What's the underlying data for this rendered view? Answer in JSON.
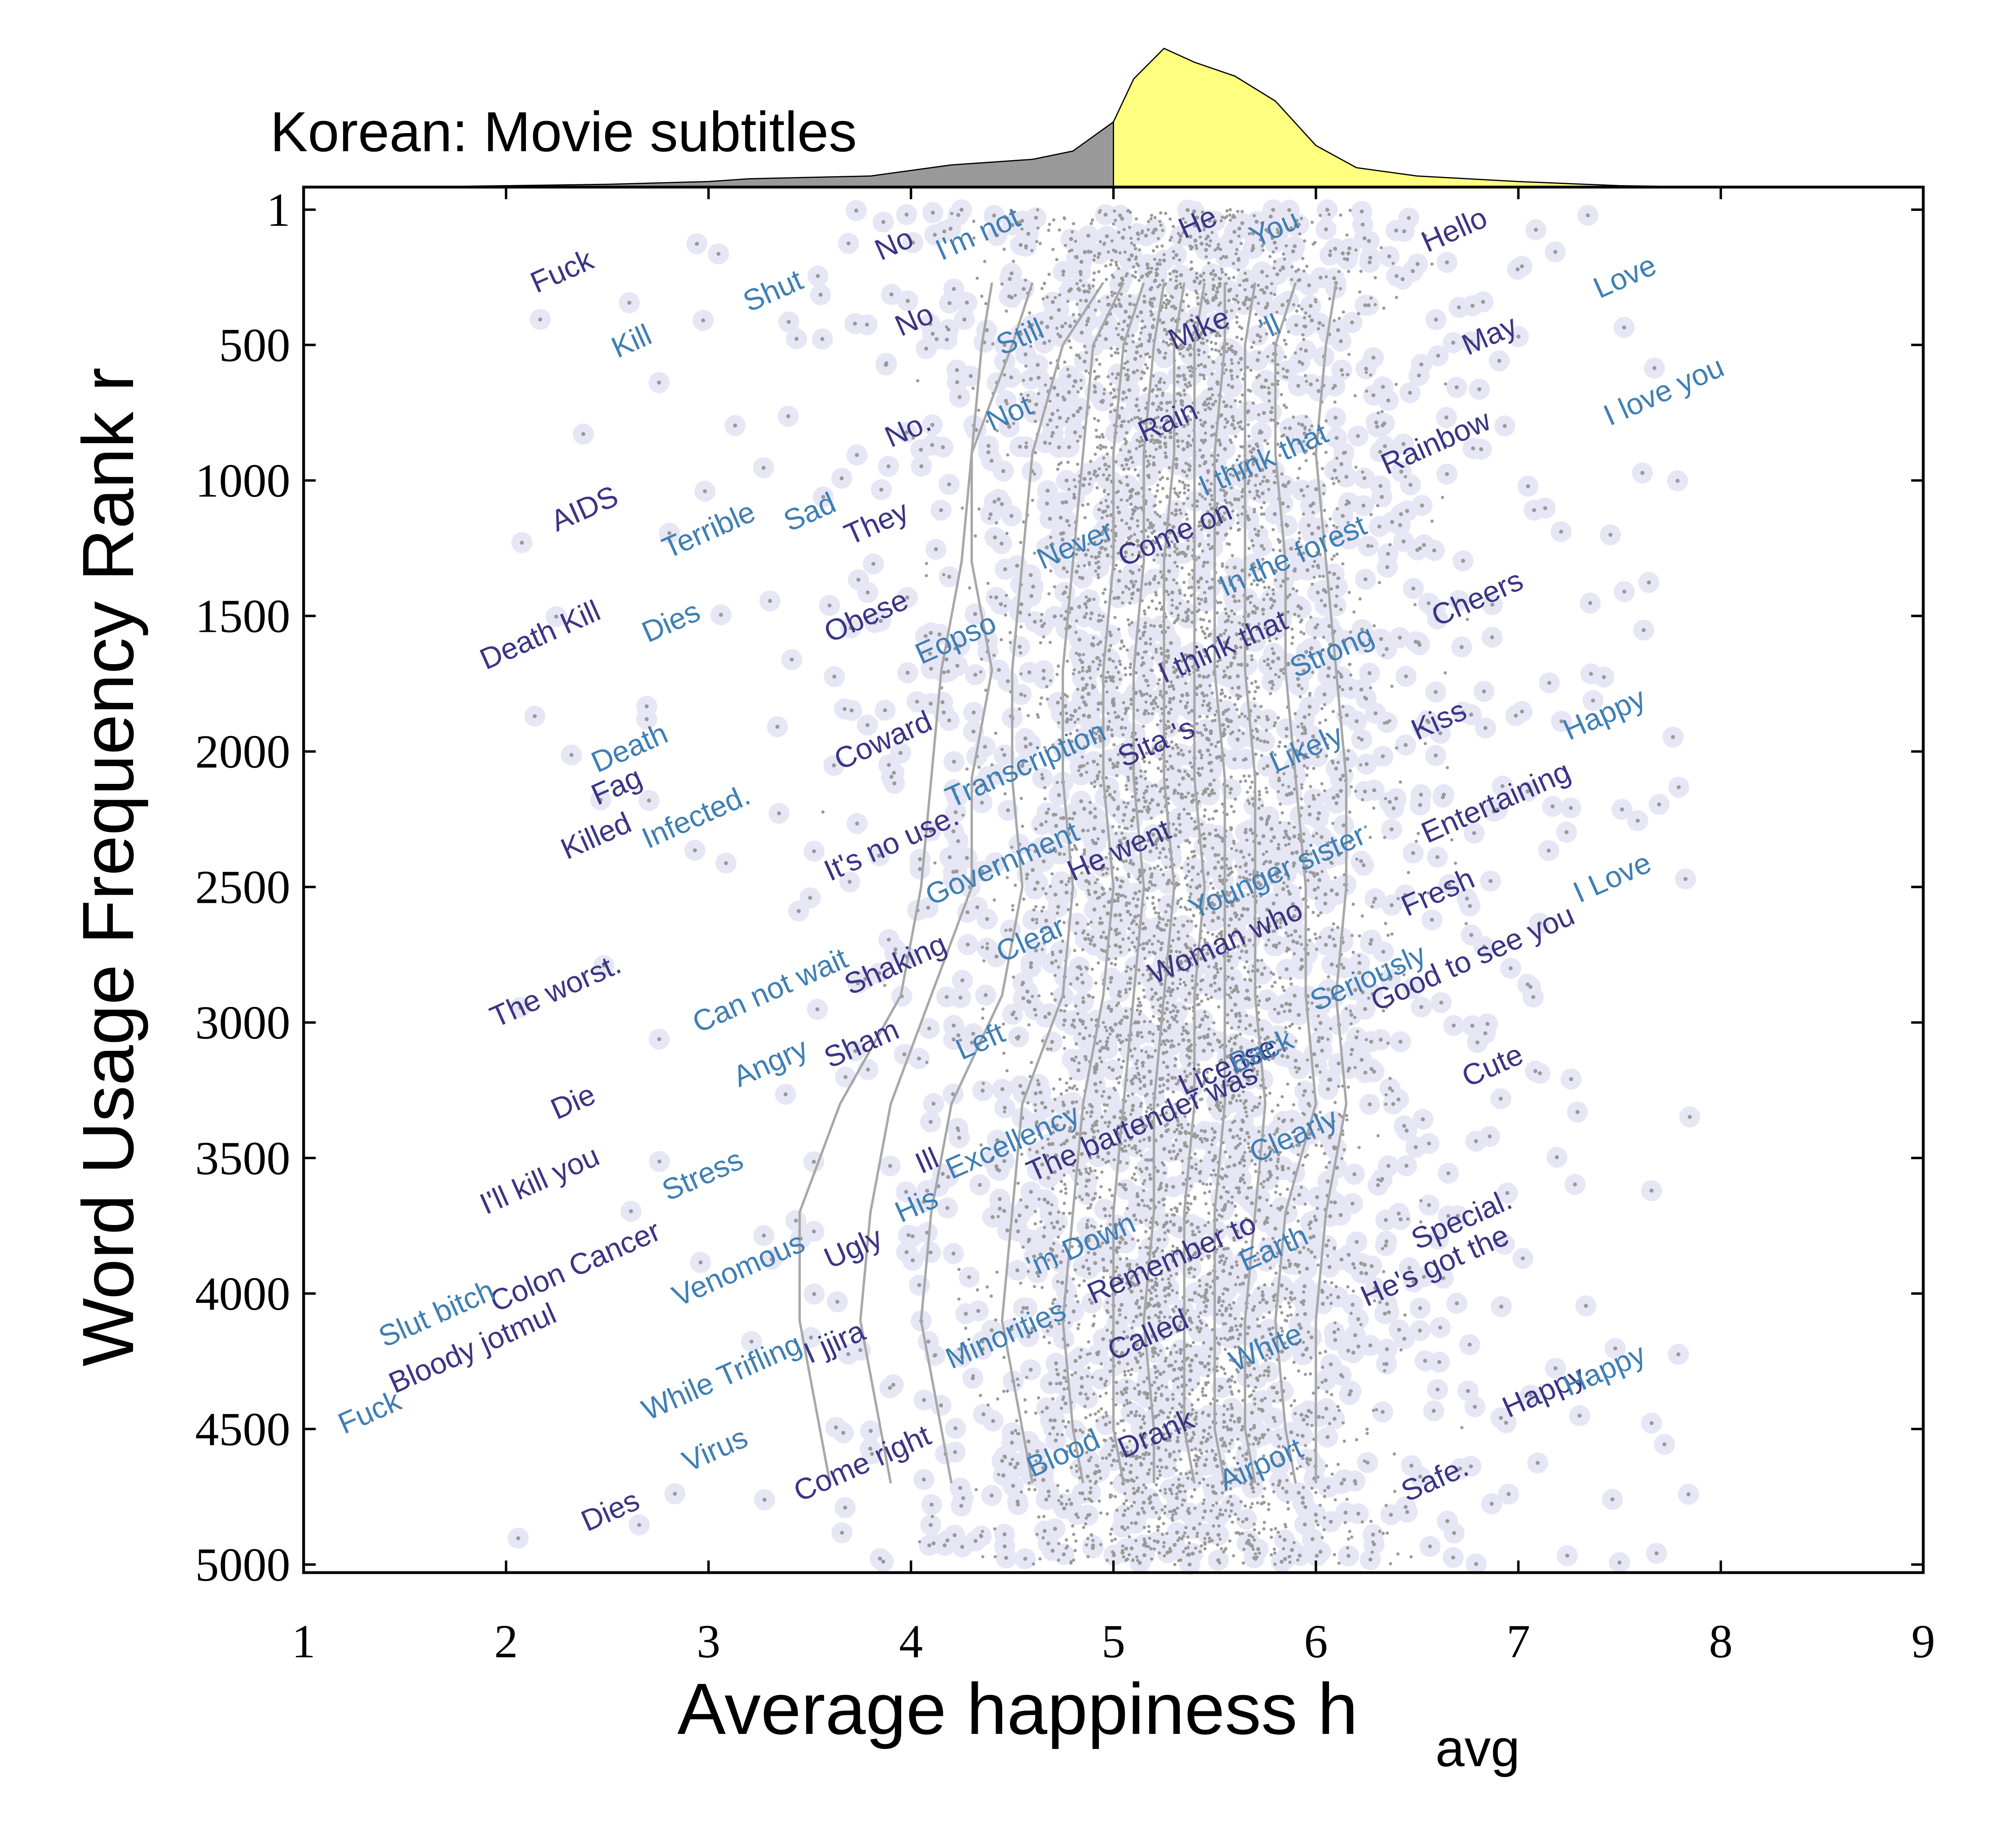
{
  "chart_data": {
    "type": "scatter",
    "title": "Korean: Movie subtitles",
    "xlabel": "Average happiness h",
    "xlabel_subscript": "avg",
    "ylabel": "Word Usage Frequency Rank r",
    "xlim": [
      1,
      9
    ],
    "ylim": [
      5000,
      1
    ],
    "y_inverted": true,
    "x_ticks": [
      1,
      2,
      3,
      4,
      5,
      6,
      7,
      8,
      9
    ],
    "y_ticks": [
      1,
      500,
      1000,
      1500,
      2000,
      2500,
      3000,
      3500,
      4000,
      4500,
      5000
    ],
    "grid": false,
    "colors": {
      "word_dark": "#3b3585",
      "word_light": "#3f7fb4",
      "dot_halo": "#e6e6f5",
      "dot": "#9a9a9a",
      "contour": "#a8a8a8",
      "dist_below_average": "#999999",
      "dist_above_average": "#ffff80"
    },
    "distribution": {
      "split_at": 5.0,
      "h": [
        1.5,
        2.0,
        2.5,
        3.0,
        3.2,
        3.5,
        3.8,
        4.0,
        4.2,
        4.4,
        4.6,
        4.8,
        5.0,
        5.1,
        5.25,
        5.4,
        5.6,
        5.8,
        6.0,
        6.2,
        6.5,
        7.0,
        7.5,
        8.0
      ],
      "density": [
        0.0,
        0.01,
        0.02,
        0.04,
        0.06,
        0.07,
        0.08,
        0.12,
        0.16,
        0.18,
        0.2,
        0.26,
        0.47,
        0.78,
        1.0,
        0.9,
        0.8,
        0.62,
        0.3,
        0.14,
        0.08,
        0.04,
        0.01,
        0.0
      ]
    },
    "contours": [
      {
        "h": [
          4.4,
          4.35,
          4.3,
          4.25,
          4.15,
          4.1,
          4.05,
          3.95,
          3.65,
          3.45,
          3.45,
          3.55,
          3.6
        ]
      },
      {
        "h": [
          4.6,
          4.5,
          4.3,
          4.3,
          4.4,
          4.3,
          4.3,
          4.1,
          3.9,
          3.8,
          3.75,
          3.85,
          3.9
        ]
      },
      {
        "h": [
          4.95,
          4.75,
          4.6,
          4.55,
          4.5,
          4.5,
          4.55,
          4.45,
          4.2,
          4.1,
          4.05,
          4.15,
          4.2
        ]
      },
      {
        "h": [
          5.05,
          4.9,
          4.85,
          4.8,
          4.75,
          4.75,
          4.8,
          4.75,
          4.55,
          4.5,
          4.45,
          4.55,
          4.6
        ]
      },
      {
        "h": [
          5.15,
          5.05,
          5.0,
          5.0,
          4.95,
          4.95,
          5.0,
          4.95,
          4.85,
          4.8,
          4.75,
          4.8,
          4.85
        ]
      },
      {
        "h": [
          5.25,
          5.2,
          5.15,
          5.15,
          5.1,
          5.1,
          5.15,
          5.1,
          5.05,
          5.0,
          5.0,
          5.0,
          5.05
        ]
      },
      {
        "h": [
          5.35,
          5.3,
          5.3,
          5.25,
          5.25,
          5.25,
          5.3,
          5.25,
          5.2,
          5.2,
          5.15,
          5.2,
          5.2
        ]
      },
      {
        "h": [
          5.45,
          5.4,
          5.4,
          5.4,
          5.4,
          5.4,
          5.45,
          5.4,
          5.4,
          5.35,
          5.35,
          5.35,
          5.4
        ]
      },
      {
        "h": [
          5.55,
          5.55,
          5.5,
          5.5,
          5.5,
          5.55,
          5.55,
          5.55,
          5.55,
          5.5,
          5.5,
          5.5,
          5.55
        ]
      },
      {
        "h": [
          5.7,
          5.65,
          5.65,
          5.65,
          5.65,
          5.7,
          5.7,
          5.7,
          5.75,
          5.7,
          5.65,
          5.65,
          5.7
        ]
      },
      {
        "h": [
          5.9,
          5.8,
          5.8,
          5.85,
          5.85,
          5.9,
          5.95,
          5.95,
          6.0,
          5.85,
          5.8,
          5.85,
          5.9
        ]
      },
      {
        "h": [
          6.1,
          6.05,
          6.0,
          6.05,
          6.1,
          6.15,
          6.15,
          6.1,
          6.15,
          6.05,
          6.0,
          6.0,
          6.0
        ]
      }
    ],
    "contour_r": [
      270,
      500,
      900,
      1300,
      1700,
      2100,
      2500,
      2900,
      3300,
      3700,
      4100,
      4500,
      4700
    ],
    "words": [
      {
        "text": "Fuck",
        "h": 2.15,
        "r": 310,
        "tone": "dark"
      },
      {
        "text": "Kill",
        "h": 2.55,
        "r": 550,
        "tone": "light"
      },
      {
        "text": "Shut",
        "h": 3.2,
        "r": 380,
        "tone": "light"
      },
      {
        "text": "No",
        "h": 3.85,
        "r": 190,
        "tone": "dark"
      },
      {
        "text": "I'm not",
        "h": 4.15,
        "r": 190,
        "tone": "light"
      },
      {
        "text": "No",
        "h": 3.95,
        "r": 470,
        "tone": "dark"
      },
      {
        "text": "Still",
        "h": 4.45,
        "r": 540,
        "tone": "light"
      },
      {
        "text": "He",
        "h": 5.35,
        "r": 110,
        "tone": "dark"
      },
      {
        "text": "You",
        "h": 5.7,
        "r": 140,
        "tone": "light"
      },
      {
        "text": "Hello",
        "h": 6.55,
        "r": 160,
        "tone": "dark"
      },
      {
        "text": "Love",
        "h": 7.4,
        "r": 330,
        "tone": "light"
      },
      {
        "text": "Mike",
        "h": 5.3,
        "r": 520,
        "tone": "dark"
      },
      {
        "text": "'ll",
        "h": 5.75,
        "r": 480,
        "tone": "light"
      },
      {
        "text": "May",
        "h": 6.75,
        "r": 540,
        "tone": "dark"
      },
      {
        "text": "I love you",
        "h": 7.45,
        "r": 800,
        "tone": "light"
      },
      {
        "text": "Not",
        "h": 4.4,
        "r": 820,
        "tone": "light"
      },
      {
        "text": "No.",
        "h": 3.9,
        "r": 880,
        "tone": "dark"
      },
      {
        "text": "Rain",
        "h": 5.15,
        "r": 860,
        "tone": "dark"
      },
      {
        "text": "I think that",
        "h": 5.45,
        "r": 1060,
        "tone": "light"
      },
      {
        "text": "Rainbow",
        "h": 6.35,
        "r": 980,
        "tone": "dark"
      },
      {
        "text": "AIDS",
        "h": 2.25,
        "r": 1190,
        "tone": "dark"
      },
      {
        "text": "Terrible",
        "h": 2.8,
        "r": 1290,
        "tone": "light"
      },
      {
        "text": "Sad",
        "h": 3.4,
        "r": 1190,
        "tone": "light"
      },
      {
        "text": "They",
        "h": 3.7,
        "r": 1240,
        "tone": "dark"
      },
      {
        "text": "Never",
        "h": 4.65,
        "r": 1330,
        "tone": "light"
      },
      {
        "text": "Come on",
        "h": 5.05,
        "r": 1320,
        "tone": "dark"
      },
      {
        "text": "In the forest",
        "h": 5.55,
        "r": 1430,
        "tone": "light"
      },
      {
        "text": "Death Kill",
        "h": 1.9,
        "r": 1700,
        "tone": "dark"
      },
      {
        "text": "Dies",
        "h": 2.7,
        "r": 1600,
        "tone": "light"
      },
      {
        "text": "Obese",
        "h": 3.6,
        "r": 1600,
        "tone": "dark"
      },
      {
        "text": "Eopso",
        "h": 4.05,
        "r": 1680,
        "tone": "light"
      },
      {
        "text": "I think that",
        "h": 5.25,
        "r": 1750,
        "tone": "dark"
      },
      {
        "text": "Strong",
        "h": 5.9,
        "r": 1730,
        "tone": "light"
      },
      {
        "text": "Cheers",
        "h": 6.6,
        "r": 1540,
        "tone": "dark"
      },
      {
        "text": "Transcription",
        "h": 4.2,
        "r": 2210,
        "tone": "light"
      },
      {
        "text": "Coward",
        "h": 3.65,
        "r": 2070,
        "tone": "dark"
      },
      {
        "text": "Sita 's",
        "h": 5.05,
        "r": 2060,
        "tone": "dark"
      },
      {
        "text": "Likely",
        "h": 5.8,
        "r": 2080,
        "tone": "light"
      },
      {
        "text": "Kiss",
        "h": 6.5,
        "r": 1960,
        "tone": "dark"
      },
      {
        "text": "Happy",
        "h": 7.25,
        "r": 1960,
        "tone": "light"
      },
      {
        "text": "Death",
        "h": 2.45,
        "r": 2080,
        "tone": "light"
      },
      {
        "text": "Fag",
        "h": 2.45,
        "r": 2200,
        "tone": "dark"
      },
      {
        "text": "Killed",
        "h": 2.3,
        "r": 2400,
        "tone": "dark"
      },
      {
        "text": "Infected.",
        "h": 2.7,
        "r": 2360,
        "tone": "light"
      },
      {
        "text": "It's no use.",
        "h": 3.6,
        "r": 2480,
        "tone": "dark"
      },
      {
        "text": "Government",
        "h": 4.1,
        "r": 2570,
        "tone": "light"
      },
      {
        "text": "He went",
        "h": 4.8,
        "r": 2480,
        "tone": "dark"
      },
      {
        "text": "Younger sister",
        "h": 5.4,
        "r": 2620,
        "tone": "light"
      },
      {
        "text": "Entertaining",
        "h": 6.55,
        "r": 2340,
        "tone": "dark"
      },
      {
        "text": "The worst.",
        "h": 1.95,
        "r": 3020,
        "tone": "dark"
      },
      {
        "text": "Can not wait",
        "h": 2.95,
        "r": 3040,
        "tone": "light"
      },
      {
        "text": "Shaking",
        "h": 3.7,
        "r": 2900,
        "tone": "dark"
      },
      {
        "text": "Clear",
        "h": 4.45,
        "r": 2780,
        "tone": "light"
      },
      {
        "text": "Woman who",
        "h": 5.2,
        "r": 2860,
        "tone": "dark"
      },
      {
        "text": "Fresh",
        "h": 6.45,
        "r": 2610,
        "tone": "dark"
      },
      {
        "text": "Seriously",
        "h": 6.0,
        "r": 2960,
        "tone": "light"
      },
      {
        "text": "I Love",
        "h": 7.3,
        "r": 2560,
        "tone": "light"
      },
      {
        "text": "Good to see you",
        "h": 6.3,
        "r": 2960,
        "tone": "dark"
      },
      {
        "text": "Die",
        "h": 2.25,
        "r": 3360,
        "tone": "dark"
      },
      {
        "text": "Angry",
        "h": 3.15,
        "r": 3240,
        "tone": "light"
      },
      {
        "text": "Sham",
        "h": 3.6,
        "r": 3170,
        "tone": "dark"
      },
      {
        "text": "Left",
        "h": 4.25,
        "r": 3140,
        "tone": "light"
      },
      {
        "text": "License",
        "h": 5.35,
        "r": 3270,
        "tone": "dark"
      },
      {
        "text": "Back",
        "h": 5.6,
        "r": 3190,
        "tone": "light"
      },
      {
        "text": "Cute",
        "h": 6.75,
        "r": 3240,
        "tone": "dark"
      },
      {
        "text": "I'll kill you",
        "h": 1.9,
        "r": 3710,
        "tone": "dark"
      },
      {
        "text": "Stress",
        "h": 2.8,
        "r": 3660,
        "tone": "light"
      },
      {
        "text": "Ill",
        "h": 4.05,
        "r": 3560,
        "tone": "dark"
      },
      {
        "text": "Excellency",
        "h": 4.2,
        "r": 3580,
        "tone": "light"
      },
      {
        "text": "The bartender was",
        "h": 4.6,
        "r": 3590,
        "tone": "dark"
      },
      {
        "text": "Clearly",
        "h": 5.7,
        "r": 3520,
        "tone": "light"
      },
      {
        "text": "Colon Cancer",
        "h": 1.95,
        "r": 4070,
        "tone": "dark"
      },
      {
        "text": "Venomous",
        "h": 2.85,
        "r": 4050,
        "tone": "light"
      },
      {
        "text": "Ugly",
        "h": 3.6,
        "r": 3910,
        "tone": "dark"
      },
      {
        "text": "His",
        "h": 3.95,
        "r": 3740,
        "tone": "light"
      },
      {
        "text": "'m Down",
        "h": 4.6,
        "r": 3940,
        "tone": "light"
      },
      {
        "text": "Remember to",
        "h": 4.9,
        "r": 4040,
        "tone": "dark"
      },
      {
        "text": "Earth",
        "h": 5.65,
        "r": 3920,
        "tone": "light"
      },
      {
        "text": "Special.",
        "h": 6.5,
        "r": 3840,
        "tone": "dark"
      },
      {
        "text": "He's got the",
        "h": 6.25,
        "r": 4050,
        "tone": "dark"
      },
      {
        "text": "Slut bitch",
        "h": 1.4,
        "r": 4200,
        "tone": "light"
      },
      {
        "text": "Bloody jotmul",
        "h": 1.45,
        "r": 4370,
        "tone": "dark"
      },
      {
        "text": "Fuck",
        "h": 1.2,
        "r": 4520,
        "tone": "light"
      },
      {
        "text": "While Trifling",
        "h": 2.7,
        "r": 4470,
        "tone": "light"
      },
      {
        "text": "I jjira",
        "h": 3.5,
        "r": 4260,
        "tone": "dark"
      },
      {
        "text": "Minorities",
        "h": 4.2,
        "r": 4280,
        "tone": "light"
      },
      {
        "text": "Called",
        "h": 5.0,
        "r": 4250,
        "tone": "dark"
      },
      {
        "text": "White",
        "h": 5.6,
        "r": 4290,
        "tone": "light"
      },
      {
        "text": "Virus",
        "h": 2.9,
        "r": 4660,
        "tone": "light"
      },
      {
        "text": "Come right",
        "h": 3.45,
        "r": 4770,
        "tone": "dark"
      },
      {
        "text": "Blood",
        "h": 4.6,
        "r": 4680,
        "tone": "light"
      },
      {
        "text": "Drank",
        "h": 5.05,
        "r": 4610,
        "tone": "dark"
      },
      {
        "text": "Airport",
        "h": 5.55,
        "r": 4730,
        "tone": "light"
      },
      {
        "text": "Safe.",
        "h": 6.45,
        "r": 4770,
        "tone": "dark"
      },
      {
        "text": "Happy.",
        "h": 6.95,
        "r": 4460,
        "tone": "dark"
      },
      {
        "text": "Happy",
        "h": 7.25,
        "r": 4380,
        "tone": "light"
      },
      {
        "text": "Dies",
        "h": 2.4,
        "r": 4880,
        "tone": "dark"
      }
    ]
  }
}
